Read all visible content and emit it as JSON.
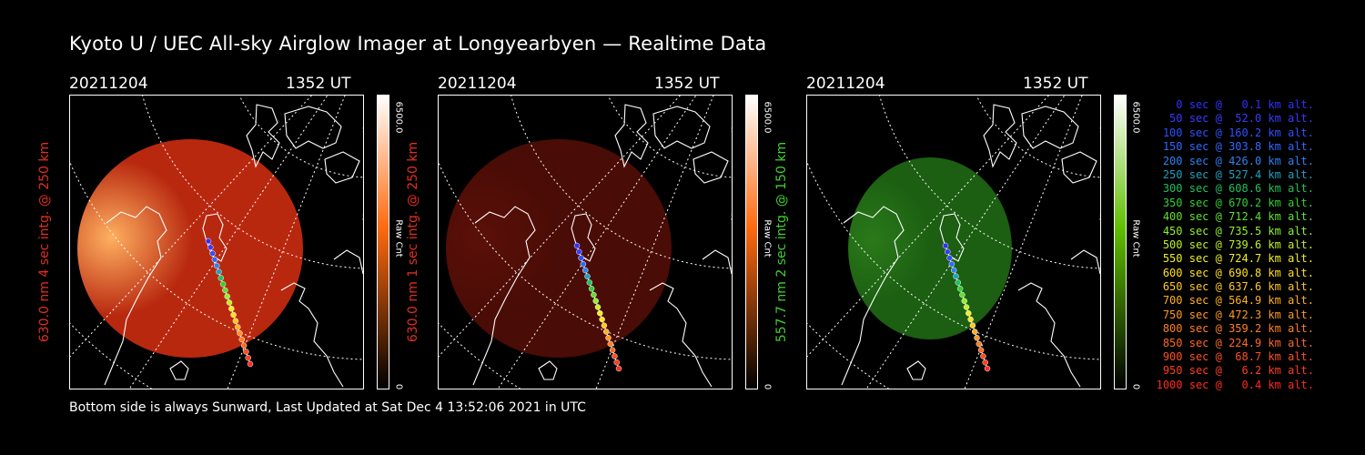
{
  "title": "Kyoto U / UEC All-sky Airglow Imager at Longyearbyen — Realtime Data",
  "footer": "Bottom side is always Sunward, Last Updated at Sat Dec  4 13:52:06 2021 in UTC",
  "panels": [
    {
      "date": "20211204",
      "time": "1352 UT",
      "side_label": "630.0 nm 4 sec intg. @ 250 km",
      "colorbar_max": "6500.0",
      "colorbar_min": "0",
      "colorbar_unit": "Raw Cnt",
      "colors": {
        "label": "#e03020",
        "image": "#b8280f",
        "bright": "#ffb060",
        "bar_top": "#ffffff",
        "bar_mid": "#ff6a10",
        "bar_bottom": "#000000"
      }
    },
    {
      "date": "20211204",
      "time": "1352 UT",
      "side_label": "630.0 nm 1 sec intg. @ 250 km",
      "colorbar_max": "6500.0",
      "colorbar_min": "0",
      "colorbar_unit": "Raw Cnt",
      "colors": {
        "label": "#e03020",
        "image": "#4a0c06",
        "bright": "#5a1008",
        "bar_top": "#ffffff",
        "bar_mid": "#ff6a10",
        "bar_bottom": "#000000"
      }
    },
    {
      "date": "20211204",
      "time": "1352 UT",
      "side_label": "557.7 nm 2 sec intg. @ 150 km",
      "colorbar_max": "6500.0",
      "colorbar_min": "0",
      "colorbar_unit": "Raw Cnt",
      "colors": {
        "label": "#40d030",
        "image": "#1c5e12",
        "bright": "#2a7a1a",
        "bar_top": "#ffffff",
        "bar_mid": "#60c000",
        "bar_bottom": "#000000"
      }
    }
  ],
  "legend": [
    {
      "text": "0 sec @   0.1 km alt.",
      "color": "#3030ff"
    },
    {
      "text": "50 sec @  52.0 km alt.",
      "color": "#3a3aff"
    },
    {
      "text": "100 sec @ 160.2 km alt.",
      "color": "#3050ff"
    },
    {
      "text": "150 sec @ 303.8 km alt.",
      "color": "#3068ff"
    },
    {
      "text": "200 sec @ 426.0 km alt.",
      "color": "#3080f0"
    },
    {
      "text": "250 sec @ 527.4 km alt.",
      "color": "#20a0c0"
    },
    {
      "text": "300 sec @ 608.6 km alt.",
      "color": "#20c060"
    },
    {
      "text": "350 sec @ 670.2 km alt.",
      "color": "#30d030"
    },
    {
      "text": "400 sec @ 712.4 km alt.",
      "color": "#60e030"
    },
    {
      "text": "450 sec @ 735.5 km alt.",
      "color": "#90f030"
    },
    {
      "text": "500 sec @ 739.6 km alt.",
      "color": "#c0f020"
    },
    {
      "text": "550 sec @ 724.7 km alt.",
      "color": "#f0f020"
    },
    {
      "text": "600 sec @ 690.8 km alt.",
      "color": "#ffe020"
    },
    {
      "text": "650 sec @ 637.6 km alt.",
      "color": "#ffc820"
    },
    {
      "text": "700 sec @ 564.9 km alt.",
      "color": "#ffb020"
    },
    {
      "text": "750 sec @ 472.3 km alt.",
      "color": "#ff9820"
    },
    {
      "text": "800 sec @ 359.2 km alt.",
      "color": "#ff8020"
    },
    {
      "text": "850 sec @ 224.9 km alt.",
      "color": "#ff6820"
    },
    {
      "text": "900 sec @  68.7 km alt.",
      "color": "#ff5020"
    },
    {
      "text": "950 sec @   6.2 km alt.",
      "color": "#ff3c20"
    },
    {
      "text": "1000 sec @   0.4 km alt.",
      "color": "#ff2a20"
    }
  ]
}
